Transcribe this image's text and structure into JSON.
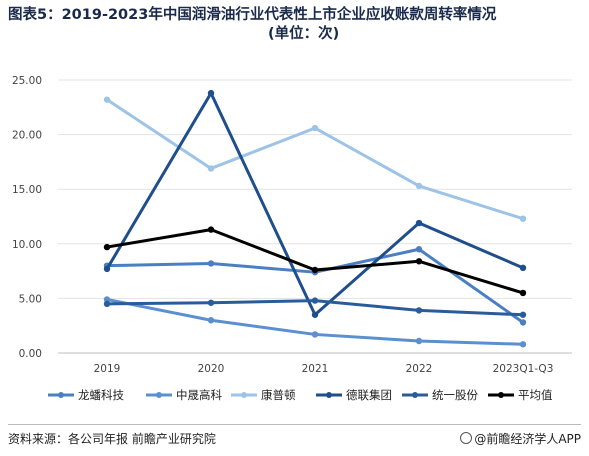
{
  "header": {
    "title_line1": "图表5：2019-2023年中国润滑油行业代表性上市企业应收账款周转率情况",
    "title_line2": "(单位：次)"
  },
  "footer": {
    "source": "资料来源：各公司年报 前瞻产业研究院",
    "brand": "@前瞻经济学人APP"
  },
  "chart_data": {
    "type": "line",
    "categories": [
      "2019",
      "2020",
      "2021",
      "2022",
      "2023Q1-Q3"
    ],
    "y_ticks": [
      "0.00",
      "5.00",
      "10.00",
      "15.00",
      "20.00",
      "25.00"
    ],
    "ylim": [
      0,
      25
    ],
    "grid": true,
    "legend_position": "bottom",
    "series": [
      {
        "name": "龙蟠科技",
        "color": "#4a7fc4",
        "values": [
          8.0,
          8.2,
          7.4,
          9.5,
          2.8
        ]
      },
      {
        "name": "中晟高科",
        "color": "#5b8fd0",
        "values": [
          4.9,
          3.0,
          1.7,
          1.1,
          0.8
        ]
      },
      {
        "name": "康普顿",
        "color": "#9dc3e6",
        "values": [
          23.2,
          16.9,
          20.6,
          15.3,
          12.3
        ]
      },
      {
        "name": "德联集团",
        "color": "#1f4e8c",
        "values": [
          7.7,
          23.8,
          3.5,
          11.9,
          7.8
        ]
      },
      {
        "name": "统一股份",
        "color": "#2a5c9a",
        "values": [
          4.5,
          4.6,
          4.8,
          3.9,
          3.5
        ]
      },
      {
        "name": "平均值",
        "color": "#000000",
        "values": [
          9.7,
          11.3,
          7.6,
          8.4,
          5.5
        ]
      }
    ]
  }
}
